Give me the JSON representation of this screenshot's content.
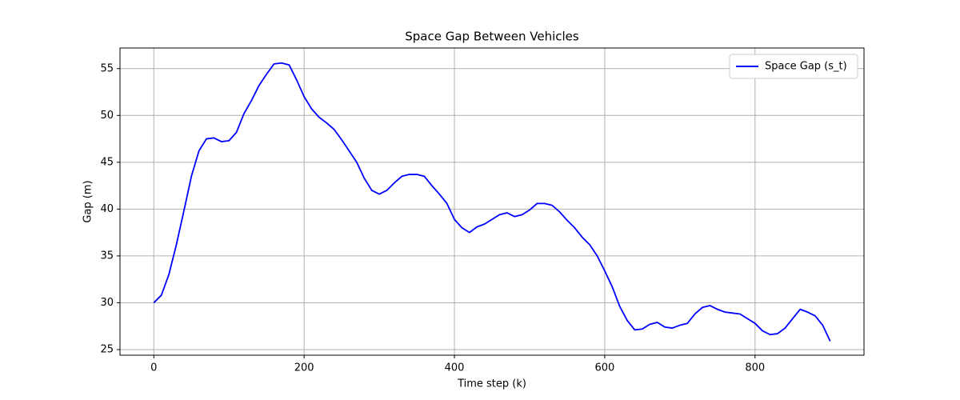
{
  "chart_data": {
    "type": "line",
    "title": "Space Gap Between Vehicles",
    "xlabel": "Time step (k)",
    "ylabel": "Gap (m)",
    "x": [
      0,
      10,
      20,
      30,
      40,
      50,
      60,
      70,
      80,
      90,
      100,
      110,
      120,
      130,
      140,
      150,
      160,
      170,
      180,
      190,
      200,
      210,
      220,
      230,
      240,
      250,
      260,
      270,
      280,
      290,
      300,
      310,
      320,
      330,
      340,
      350,
      360,
      370,
      380,
      390,
      400,
      410,
      420,
      430,
      440,
      450,
      460,
      470,
      480,
      490,
      500,
      510,
      520,
      530,
      540,
      550,
      560,
      570,
      580,
      590,
      600,
      610,
      620,
      630,
      640,
      650,
      660,
      670,
      680,
      690,
      700,
      710,
      720,
      730,
      740,
      750,
      760,
      770,
      780,
      790,
      800,
      810,
      820,
      830,
      840,
      850,
      860,
      870,
      880,
      890,
      900
    ],
    "series": [
      {
        "name": "Space Gap (s_t)",
        "color": "#0000ff",
        "values": [
          30.0,
          30.8,
          33.0,
          36.2,
          39.8,
          43.5,
          46.2,
          47.5,
          47.6,
          47.2,
          47.3,
          48.2,
          50.2,
          51.6,
          53.2,
          54.4,
          55.5,
          55.6,
          55.4,
          53.8,
          52.0,
          50.7,
          49.8,
          49.2,
          48.5,
          47.4,
          46.2,
          45.0,
          43.3,
          42.0,
          41.6,
          42.0,
          42.8,
          43.5,
          43.7,
          43.7,
          43.5,
          42.5,
          41.6,
          40.6,
          38.9,
          38.0,
          37.5,
          38.1,
          38.4,
          38.9,
          39.4,
          39.6,
          39.2,
          39.4,
          39.9,
          40.6,
          40.6,
          40.4,
          39.7,
          38.8,
          38.0,
          37.0,
          36.2,
          35.0,
          33.4,
          31.7,
          29.6,
          28.1,
          27.1,
          27.2,
          27.7,
          27.9,
          27.4,
          27.3,
          27.6,
          27.8,
          28.8,
          29.5,
          29.7,
          29.3,
          29.0,
          28.9,
          28.8,
          28.3,
          27.8,
          27.0,
          26.6,
          26.7,
          27.3,
          28.3,
          29.3,
          29.0,
          28.6,
          27.6,
          25.9
        ]
      }
    ],
    "xlim": [
      -45,
      945
    ],
    "ylim": [
      24.4,
      57.2
    ],
    "xticks": [
      0,
      200,
      400,
      600,
      800
    ],
    "yticks": [
      25,
      30,
      35,
      40,
      45,
      50,
      55
    ],
    "grid": true,
    "legend": "upper right"
  }
}
